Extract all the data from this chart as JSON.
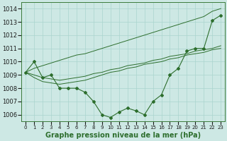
{
  "xlabel": "Graphe pression niveau de la mer (hPa)",
  "background_color": "#cde8e4",
  "grid_color": "#aad4ce",
  "line_color": "#2d6e2d",
  "marker_color": "#2d6e2d",
  "ylim": [
    1005.5,
    1014.5
  ],
  "xlim": [
    -0.5,
    23.5
  ],
  "yticks": [
    1006,
    1007,
    1008,
    1009,
    1010,
    1011,
    1012,
    1013,
    1014
  ],
  "xticks": [
    0,
    1,
    2,
    3,
    4,
    5,
    6,
    7,
    8,
    9,
    10,
    11,
    12,
    13,
    14,
    15,
    16,
    17,
    18,
    19,
    20,
    21,
    22,
    23
  ],
  "main_y": [
    1009.2,
    1010.0,
    1008.8,
    1009.0,
    1008.0,
    1008.0,
    1008.0,
    1007.7,
    1007.0,
    1006.0,
    1005.8,
    1006.2,
    1006.5,
    1006.3,
    1006.0,
    1007.0,
    1007.5,
    1009.0,
    1009.5,
    1010.8,
    1011.0,
    1011.0,
    1013.1,
    1013.5
  ],
  "trend_upper": [
    1009.2,
    1009.5,
    1009.7,
    1009.9,
    1010.1,
    1010.3,
    1010.5,
    1010.6,
    1010.8,
    1011.0,
    1011.2,
    1011.4,
    1011.6,
    1011.8,
    1012.0,
    1012.2,
    1012.4,
    1012.6,
    1012.8,
    1013.0,
    1013.2,
    1013.4,
    1013.8,
    1014.0
  ],
  "trend_mid1": [
    1009.2,
    1009.0,
    1008.8,
    1008.7,
    1008.6,
    1008.7,
    1008.8,
    1008.9,
    1009.1,
    1009.2,
    1009.4,
    1009.5,
    1009.7,
    1009.8,
    1009.9,
    1010.1,
    1010.2,
    1010.4,
    1010.5,
    1010.6,
    1010.8,
    1010.9,
    1011.0,
    1011.2
  ],
  "trend_mid2": [
    1009.2,
    1008.8,
    1008.5,
    1008.4,
    1008.3,
    1008.4,
    1008.5,
    1008.6,
    1008.8,
    1009.0,
    1009.2,
    1009.3,
    1009.5,
    1009.6,
    1009.8,
    1009.9,
    1010.0,
    1010.2,
    1010.3,
    1010.5,
    1010.6,
    1010.7,
    1010.9,
    1011.0
  ],
  "fontsize_xlabel": 7,
  "fontsize_ytick": 6,
  "fontsize_xtick": 5
}
